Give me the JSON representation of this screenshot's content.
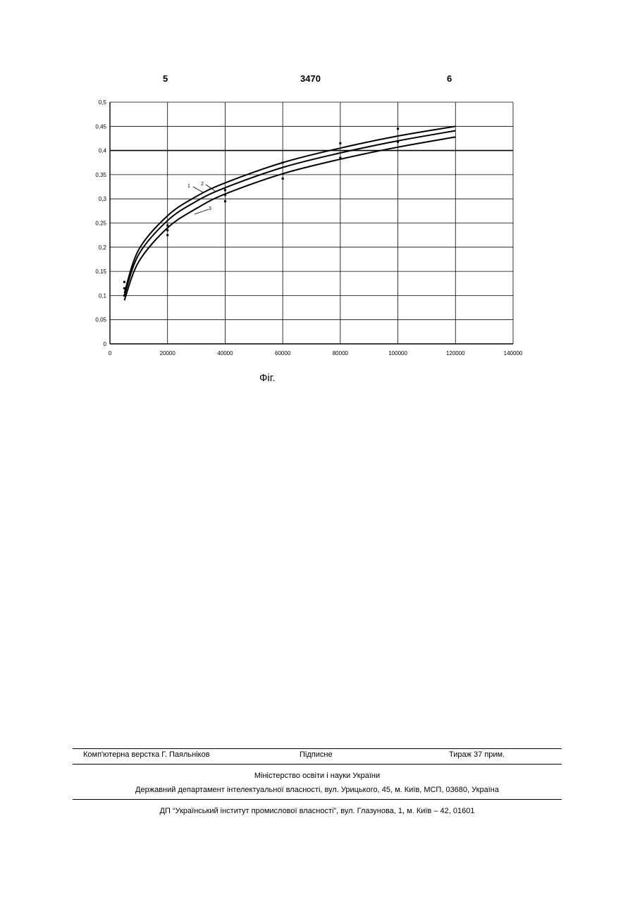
{
  "header": {
    "left": "5",
    "center": "3470",
    "right": "6"
  },
  "caption": "Фіг.",
  "chart_data": {
    "type": "line",
    "title": "",
    "xlabel": "",
    "ylabel": "",
    "xlim": [
      0,
      140000
    ],
    "ylim": [
      0,
      0.5
    ],
    "x_tick_labels": [
      "0",
      "20000",
      "40000",
      "60000",
      "80000",
      "100000",
      "120000",
      "140000"
    ],
    "x_tick_values": [
      0,
      20000,
      40000,
      60000,
      80000,
      100000,
      120000,
      140000
    ],
    "y_tick_labels": [
      "0",
      "0,05",
      "0,1",
      "0,15",
      "0,2",
      "0,25",
      "0,3",
      "0,35",
      "0,4",
      "0,45",
      "0,5"
    ],
    "y_tick_values": [
      0,
      0.05,
      0.1,
      0.15,
      0.2,
      0.25,
      0.3,
      0.35,
      0.4,
      0.45,
      0.5
    ],
    "grid": true,
    "series": [
      {
        "name": "1",
        "x": [
          5000,
          10000,
          20000,
          30000,
          40000,
          60000,
          80000,
          100000,
          120000
        ],
        "values": [
          0.105,
          0.195,
          0.265,
          0.305,
          0.333,
          0.375,
          0.405,
          0.43,
          0.45
        ]
      },
      {
        "name": "2",
        "x": [
          5000,
          10000,
          20000,
          30000,
          40000,
          60000,
          80000,
          100000,
          120000
        ],
        "values": [
          0.1,
          0.185,
          0.255,
          0.295,
          0.323,
          0.365,
          0.395,
          0.42,
          0.441
        ]
      },
      {
        "name": "3",
        "x": [
          5000,
          10000,
          20000,
          30000,
          40000,
          60000,
          80000,
          100000,
          120000
        ],
        "values": [
          0.09,
          0.17,
          0.24,
          0.28,
          0.31,
          0.352,
          0.382,
          0.407,
          0.428
        ]
      }
    ],
    "markers": {
      "x": [
        5000,
        5000,
        5000,
        20000,
        20000,
        20000,
        40000,
        40000,
        40000,
        60000,
        60000,
        80000,
        80000,
        100000,
        100000
      ],
      "y": [
        0.128,
        0.115,
        0.1,
        0.245,
        0.235,
        0.225,
        0.318,
        0.308,
        0.295,
        0.375,
        0.342,
        0.415,
        0.385,
        0.445,
        0.418
      ]
    },
    "annotations": [
      "1",
      "2",
      "3"
    ]
  },
  "footer": {
    "layout": "Комп'ютерна верстка Г. Паяльніков",
    "signed": "Підписне",
    "circulation": "Тираж 37 прим.",
    "ministry": "Міністерство освіти і науки України",
    "department": "Державний департамент інтелектуальної власності, вул. Урицького, 45, м. Київ, МСП, 03680, Україна",
    "printer": "ДП “Український інститут промислової власності”, вул. Глазунова, 1, м. Київ – 42, 01601"
  }
}
